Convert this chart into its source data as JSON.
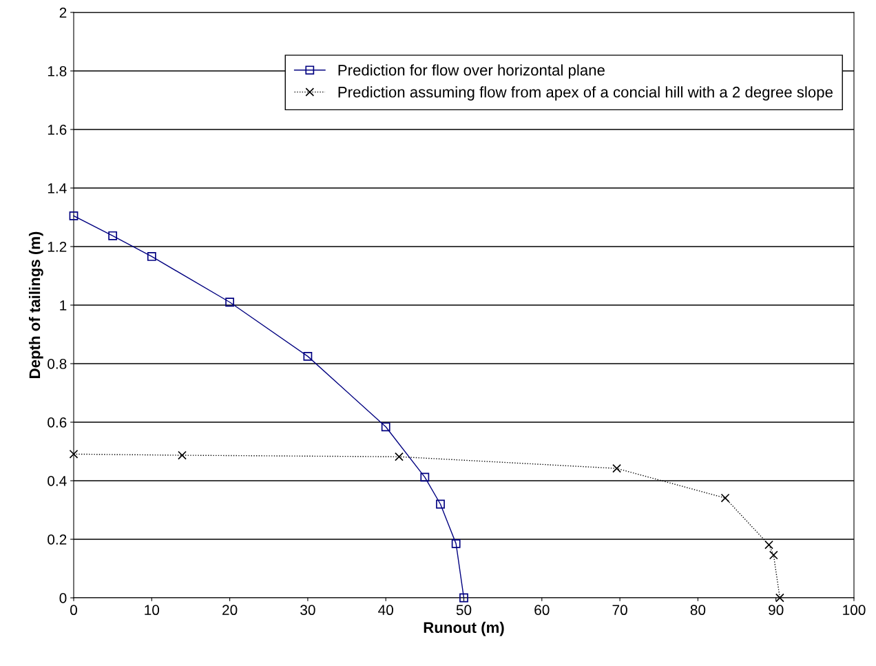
{
  "chart_data": {
    "type": "line",
    "xlabel": "Runout (m)",
    "ylabel": "Depth of tailings (m)",
    "xlim": [
      0,
      100
    ],
    "xticks": [
      0,
      10,
      20,
      30,
      40,
      50,
      60,
      70,
      80,
      90,
      100
    ],
    "ylim": [
      0,
      2
    ],
    "yticks": [
      0,
      0.2,
      0.4,
      0.6,
      0.8,
      1,
      1.2,
      1.4,
      1.6,
      1.8,
      2
    ],
    "grid": "y",
    "legend": "top right",
    "series": [
      {
        "name": "Prediction for flow over horizontal plane",
        "color": "#000080",
        "marker": "square",
        "line_style": "solid",
        "x": [
          0,
          5,
          10,
          20,
          30,
          40,
          45,
          47,
          49,
          50
        ],
        "values": [
          1.305,
          1.237,
          1.166,
          1.01,
          0.825,
          0.584,
          0.412,
          0.32,
          0.185,
          0
        ]
      },
      {
        "name": "Prediction assuming flow from apex of a concial hill with a 2 degree slope",
        "color": "#000000",
        "marker": "cross",
        "line_style": "dotted",
        "x": [
          0,
          13.9,
          41.7,
          69.6,
          83.5,
          89.1,
          89.7,
          90.5
        ],
        "values": [
          0.491,
          0.487,
          0.482,
          0.442,
          0.341,
          0.181,
          0.146,
          0
        ]
      }
    ]
  }
}
